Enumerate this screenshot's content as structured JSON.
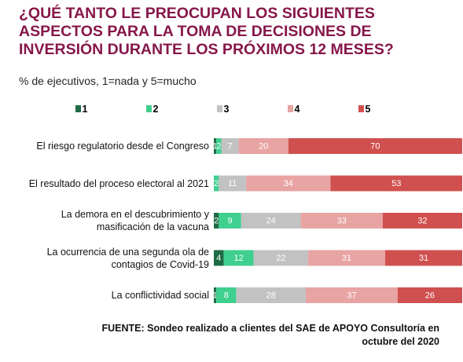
{
  "chart_data": {
    "type": "stacked-bar-horizontal",
    "title": "¿QUÉ TANTO LE PREOCUPAN LOS SIGUIENTES\nASPECTOS PARA LA TOMA DE DECISIONES DE\nINVERSIÓN DURANTE LOS PRÓXIMOS 12 MESES?",
    "subtitle": "% de ejecutivos, 1=nada y 5=mucho",
    "source": "FUENTE: Sondeo realizado a clientes del SAE de APOYO Consultoría en\noctubre del 2020",
    "xlim": [
      0,
      100
    ],
    "categories": [
      "El riesgo regulatorio desde el Congreso",
      "El resultado del proceso electoral al 2021",
      "La demora en el descubrimiento y\nmasificación de la vacuna",
      "La ocurrencia de una segunda ola de\ncontagios de Covid-19",
      "La conflictividad social"
    ],
    "series": [
      {
        "name": "1",
        "color": "#1f6b45",
        "values": [
          1,
          null,
          2,
          4,
          1
        ]
      },
      {
        "name": "2",
        "color": "#3fcf8e",
        "values": [
          2,
          2,
          9,
          12,
          8
        ]
      },
      {
        "name": "3",
        "color": "#c2c2c2",
        "values": [
          7,
          11,
          24,
          22,
          28
        ]
      },
      {
        "name": "4",
        "color": "#e8a3a3",
        "values": [
          20,
          34,
          33,
          31,
          37
        ]
      },
      {
        "name": "5",
        "color": "#d0504f",
        "values": [
          70,
          53,
          32,
          31,
          26
        ]
      }
    ]
  }
}
